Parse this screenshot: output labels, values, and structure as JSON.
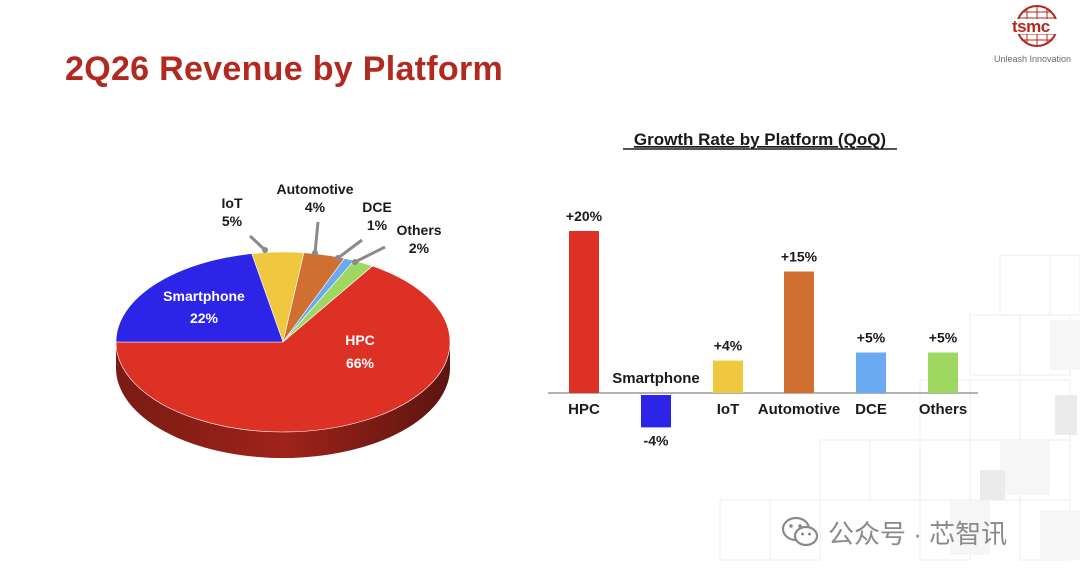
{
  "slide": {
    "title": "2Q26 Revenue by Platform"
  },
  "logo": {
    "brand": "tsmc",
    "tagline": "Unleash Innovation"
  },
  "watermark": {
    "text": "公众号 · 芯智讯",
    "icon": "wechat-icon"
  },
  "chart_data": [
    {
      "type": "pie",
      "title": "",
      "slices": [
        {
          "label": "HPC",
          "value": 66,
          "value_label": "66%",
          "color": "#dc3124"
        },
        {
          "label": "Smartphone",
          "value": 22,
          "value_label": "22%",
          "color": "#2c24e6"
        },
        {
          "label": "IoT",
          "value": 5,
          "value_label": "5%",
          "color": "#f0c840"
        },
        {
          "label": "Automotive",
          "value": 4,
          "value_label": "4%",
          "color": "#cf7030"
        },
        {
          "label": "DCE",
          "value": 1,
          "value_label": "1%",
          "color": "#6aaaf0"
        },
        {
          "label": "Others",
          "value": 2,
          "value_label": "2%",
          "color": "#9ed860"
        }
      ]
    },
    {
      "type": "bar",
      "title": "Growth Rate by Platform (QoQ)",
      "xlabel": "",
      "ylabel": "",
      "categories": [
        "HPC",
        "Smartphone",
        "IoT",
        "Automotive",
        "DCE",
        "Others"
      ],
      "values": [
        20,
        -4,
        4,
        15,
        5,
        5
      ],
      "value_labels": [
        "+20%",
        "-4%",
        "+4%",
        "+15%",
        "+5%",
        "+5%"
      ],
      "colors": [
        "#dc3124",
        "#2c24e6",
        "#f0c840",
        "#cf7030",
        "#6aaaf0",
        "#9ed860"
      ],
      "ylim": [
        -5,
        20
      ],
      "grid": false
    }
  ]
}
